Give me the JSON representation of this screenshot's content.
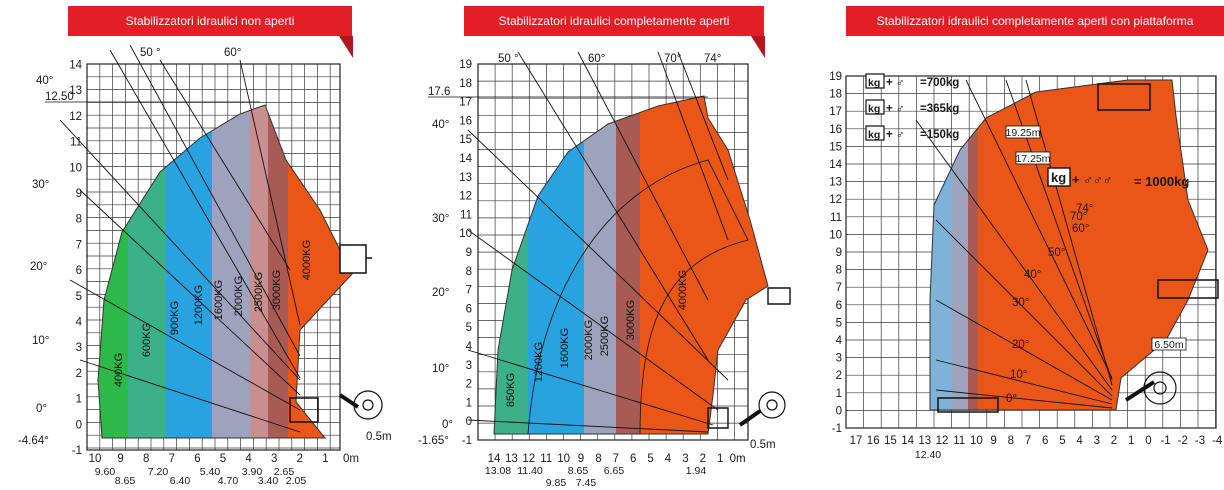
{
  "colors": {
    "banner": "#e41e26",
    "banner_tail": "#b0181e",
    "grid": "#3a3a3a",
    "zone_green": "#2db84a",
    "zone_teal": "#3bb089",
    "zone_blue": "#29a3df",
    "zone_grey": "#9ea3bd",
    "zone_pink": "#c98e8e",
    "zone_red": "#a85a55",
    "zone_orange": "#ea5518"
  },
  "panels": [
    {
      "title": "Stabilizzatori idraulici non aperti",
      "ylim": [
        -1,
        14
      ],
      "xlim": [
        10,
        -2
      ],
      "y_ticks": [
        "-1",
        "0",
        "1",
        "2",
        "3",
        "4",
        "5",
        "6",
        "7",
        "8",
        "9",
        "10",
        "11",
        "12",
        "13",
        "14"
      ],
      "x_ticks": [
        "10",
        "9",
        "8",
        "7",
        "6",
        "5",
        "4",
        "3",
        "2",
        "1",
        "0m"
      ],
      "x_sub_labels": [
        "9.60",
        "8.65",
        "7.20",
        "6.40",
        "5.40",
        "4.70",
        "3.90",
        "3.40",
        "2.65",
        "2.05"
      ],
      "max_height_label": "12.50",
      "min_depth_label": "-4.64°",
      "angle_labels": [
        "40°",
        "30°",
        "20°",
        "10°",
        "0°"
      ],
      "top_angle_labels": [
        "50 °",
        "60°"
      ],
      "reach_label": "0.5m",
      "zones": [
        {
          "label": "400KG",
          "color": "zone_green"
        },
        {
          "label": "600KG",
          "color": "zone_teal"
        },
        {
          "label": "900KG",
          "color": "zone_blue"
        },
        {
          "label": "1200KG",
          "color": "zone_blue"
        },
        {
          "label": "1600KG",
          "color": "zone_grey"
        },
        {
          "label": "2000KG",
          "color": "zone_grey"
        },
        {
          "label": "2500KG",
          "color": "zone_pink"
        },
        {
          "label": "3000KG",
          "color": "zone_red"
        },
        {
          "label": "4000KG",
          "color": "zone_orange"
        }
      ]
    },
    {
      "title": "Stabilizzatori idraulici completamente aperti",
      "ylim": [
        -1,
        19
      ],
      "xlim": [
        14,
        -1
      ],
      "y_ticks": [
        "-1",
        "0",
        "1",
        "2",
        "3",
        "4",
        "5",
        "6",
        "7",
        "8",
        "9",
        "10",
        "11",
        "12",
        "13",
        "14",
        "15",
        "16",
        "17",
        "18",
        "19"
      ],
      "x_ticks": [
        "14",
        "13",
        "12",
        "11",
        "10",
        "9",
        "8",
        "7",
        "6",
        "5",
        "4",
        "3",
        "2",
        "1",
        "0m"
      ],
      "x_sub_labels": [
        "13.08",
        "11.40",
        "9.85",
        "8.65",
        "7.45",
        "6.65",
        "1.94"
      ],
      "max_height_label": "17.6",
      "min_depth_label": "-1.65°",
      "angle_labels": [
        "40°",
        "30°",
        "20°",
        "10°",
        "0°"
      ],
      "top_angle_labels": [
        "50 °",
        "60°",
        "70°",
        "74°"
      ],
      "reach_label": "0.5m",
      "zones": [
        {
          "label": "850KG",
          "color": "zone_teal"
        },
        {
          "label": "1200KG",
          "color": "zone_blue"
        },
        {
          "label": "1600KG",
          "color": "zone_blue"
        },
        {
          "label": "2000KG",
          "color": "zone_grey"
        },
        {
          "label": "2500KG",
          "color": "zone_grey"
        },
        {
          "label": "3000KG",
          "color": "zone_red"
        },
        {
          "label": "4000KG",
          "color": "zone_orange"
        }
      ]
    },
    {
      "title": "Stabilizzatori idraulici completamente aperti con piattaforma",
      "ylim": [
        -1,
        19
      ],
      "xlim": [
        17,
        -4
      ],
      "y_ticks": [
        "-1",
        "0",
        "1",
        "2",
        "3",
        "4",
        "5",
        "6",
        "7",
        "8",
        "9",
        "10",
        "11",
        "12",
        "13",
        "14",
        "15",
        "16",
        "17",
        "18",
        "19"
      ],
      "x_ticks": [
        "17",
        "16",
        "15",
        "14",
        "13",
        "12",
        "11",
        "10",
        "9",
        "8",
        "7",
        "6",
        "5",
        "4",
        "3",
        "2",
        "1",
        "0",
        "-1",
        "-2",
        "-3",
        "-4"
      ],
      "x_sub_labels": [
        "12.40"
      ],
      "angle_labels": [
        "74°",
        "70°",
        "60°",
        "50°",
        "40°",
        "30°",
        "20°",
        "10°",
        "0°"
      ],
      "height_tags": [
        "19.25m",
        "17.25m",
        "6.50m"
      ],
      "platform_loads": [
        {
          "kg": "kg",
          "load": "=700kg"
        },
        {
          "kg": "kg",
          "load": "=365kg"
        },
        {
          "kg": "kg",
          "load": "=150kg"
        }
      ],
      "max_load": {
        "kg": "kg",
        "load": "1000kg"
      }
    }
  ]
}
